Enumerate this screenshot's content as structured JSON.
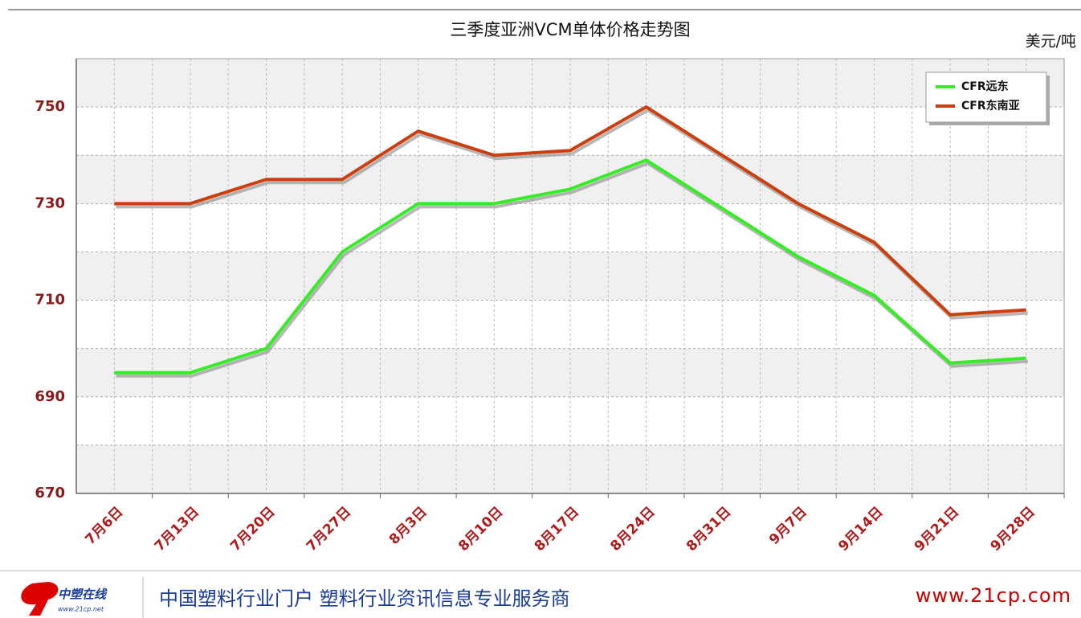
{
  "chart_data": {
    "type": "line",
    "title": "三季度亚洲VCM单体价格走势图",
    "unit_label": "美元/吨",
    "categories": [
      "7月6日",
      "7月13日",
      "7月20日",
      "7月27日",
      "8月3日",
      "8月10日",
      "8月17日",
      "8月24日",
      "8月31日",
      "9月7日",
      "9月14日",
      "9月21日",
      "9月28日"
    ],
    "series": [
      {
        "name": "CFR远东",
        "color": "#33ee22",
        "values": [
          695,
          695,
          700,
          720,
          730,
          730,
          733,
          739,
          729,
          719,
          711,
          697,
          698
        ]
      },
      {
        "name": "CFR东南亚",
        "color": "#cc3f0c",
        "values": [
          730,
          730,
          735,
          735,
          745,
          740,
          741,
          750,
          740,
          730,
          722,
          707,
          708
        ]
      }
    ],
    "ylim": [
      670,
      760
    ],
    "yticks": [
      670,
      690,
      710,
      730,
      750
    ],
    "minor_yticks": [
      680,
      700,
      720,
      740,
      760
    ],
    "grid": true,
    "legend": "top-right"
  },
  "footer": {
    "logo": "中塑在线",
    "logo_url": "www.21cp.net",
    "slogan": "中国塑料行业门户 塑料行业资讯信息专业服务商",
    "site": "www.21cp.com"
  }
}
